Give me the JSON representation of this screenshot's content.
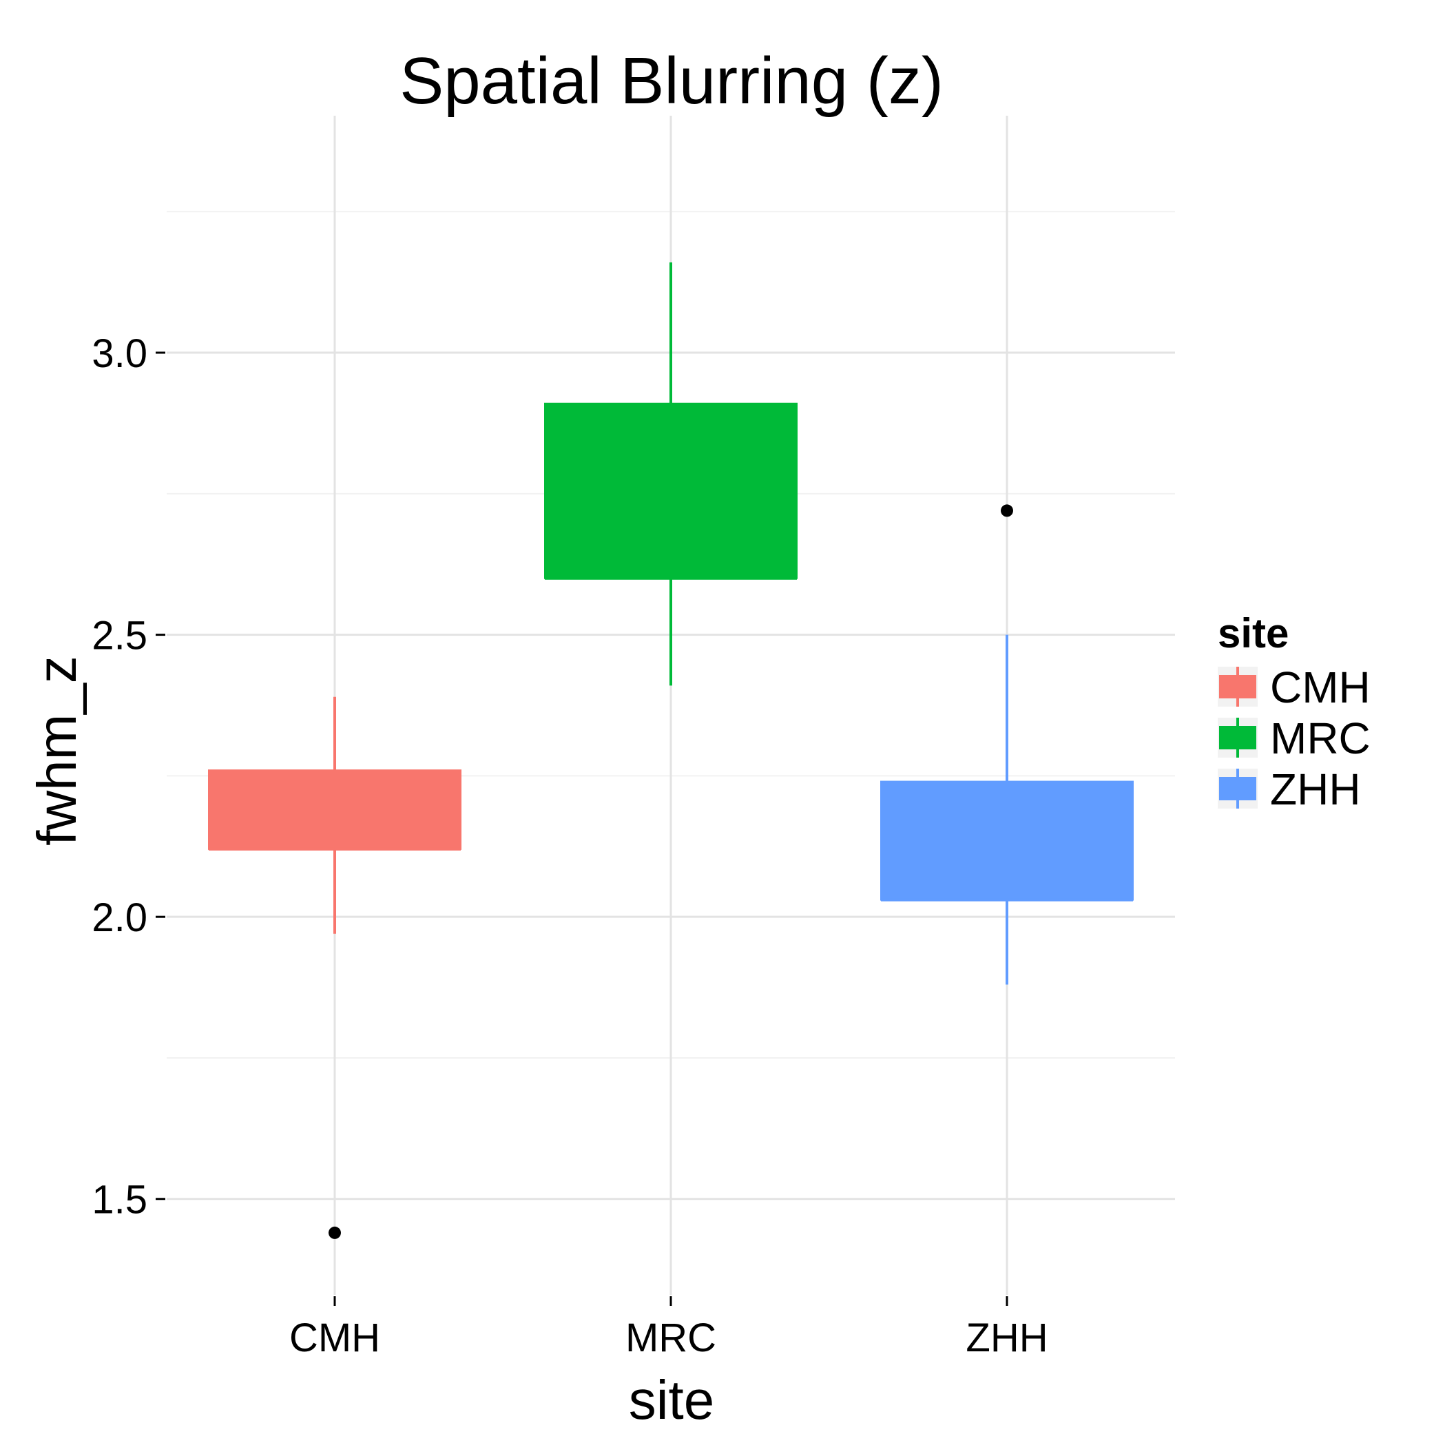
{
  "chart_data": {
    "type": "boxplot",
    "title": "Spatial Blurring (z)",
    "xlabel": "site",
    "ylabel": "fwhm_z",
    "ylim": [
      1.33,
      3.42
    ],
    "yticks": [
      1.5,
      2.0,
      2.5,
      3.0
    ],
    "ytick_labels": [
      "1.5",
      "2.0",
      "2.5",
      "3.0"
    ],
    "categories": [
      "CMH",
      "MRC",
      "ZHH"
    ],
    "grid": true,
    "legend": {
      "title": "site",
      "position": "right",
      "entries": [
        "CMH",
        "MRC",
        "ZHH"
      ]
    },
    "series": [
      {
        "name": "CMH",
        "color": "#F8766D",
        "whisker_low": 1.97,
        "q1": 2.12,
        "median": 2.12,
        "q3": 2.26,
        "whisker_high": 2.39,
        "outliers": [
          1.44
        ]
      },
      {
        "name": "MRC",
        "color": "#00BA38",
        "whisker_low": 2.41,
        "q1": 2.6,
        "median": 2.6,
        "q3": 2.91,
        "whisker_high": 3.16,
        "outliers": []
      },
      {
        "name": "ZHH",
        "color": "#619CFF",
        "whisker_low": 1.88,
        "q1": 2.03,
        "median": 2.03,
        "q3": 2.24,
        "whisker_high": 2.5,
        "outliers": [
          2.72
        ]
      }
    ]
  }
}
